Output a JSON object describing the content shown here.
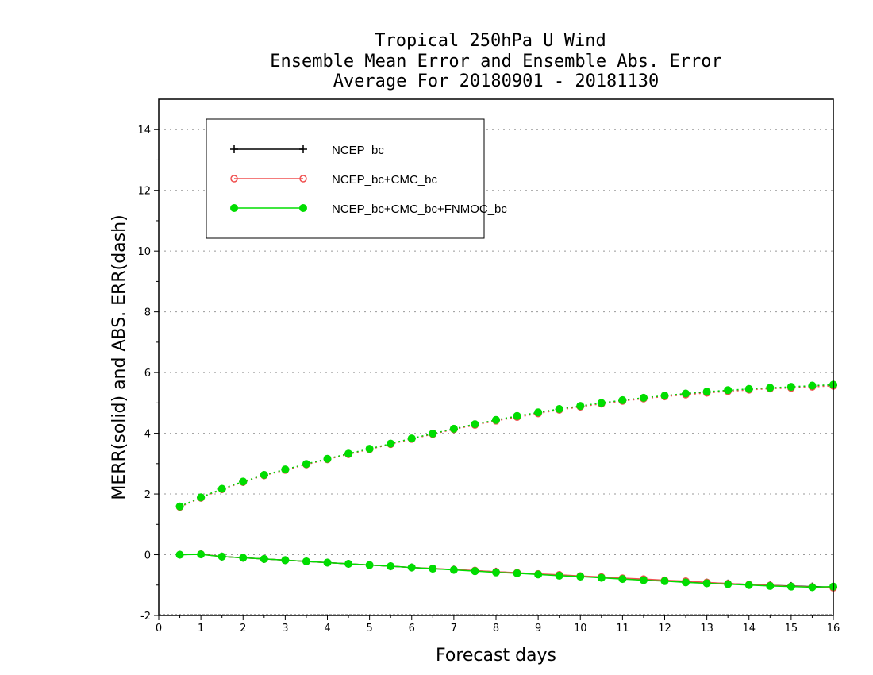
{
  "chart_data": {
    "type": "line",
    "title": [
      "Tropical 250hPa U Wind",
      "Ensemble Mean Error and Ensemble Abs. Error",
      "Average For 20180901 - 20181130"
    ],
    "xlabel": "Forecast days",
    "ylabel": "MERR(solid) and ABS. ERR(dash)",
    "xlim": [
      0,
      16
    ],
    "ylim": [
      -2,
      15
    ],
    "xticks": [
      0,
      1,
      2,
      3,
      4,
      5,
      6,
      7,
      8,
      9,
      10,
      11,
      12,
      13,
      14,
      15,
      16
    ],
    "yticks": [
      -2,
      0,
      2,
      4,
      6,
      8,
      10,
      12,
      14
    ],
    "grid": "horizontal dotted",
    "legend_position": "top-left",
    "x": [
      0.5,
      1,
      1.5,
      2,
      2.5,
      3,
      3.5,
      4,
      4.5,
      5,
      5.5,
      6,
      6.5,
      7,
      7.5,
      8,
      8.5,
      9,
      9.5,
      10,
      10.5,
      11,
      11.5,
      12,
      12.5,
      13,
      13.5,
      14,
      14.5,
      15,
      15.5,
      16
    ],
    "series": [
      {
        "name": "NCEP_bc",
        "color": "#000000",
        "marker": "plus",
        "mean_error": [
          0,
          0.02,
          -0.06,
          -0.1,
          -0.14,
          -0.18,
          -0.22,
          -0.26,
          -0.3,
          -0.34,
          -0.38,
          -0.42,
          -0.46,
          -0.49,
          -0.53,
          -0.56,
          -0.6,
          -0.64,
          -0.68,
          -0.71,
          -0.75,
          -0.79,
          -0.82,
          -0.86,
          -0.89,
          -0.92,
          -0.95,
          -0.98,
          -1.01,
          -1.03,
          -1.05,
          -1.07
        ],
        "abs_error": [
          1.58,
          1.88,
          2.16,
          2.4,
          2.62,
          2.8,
          2.98,
          3.15,
          3.32,
          3.48,
          3.65,
          3.82,
          3.98,
          4.14,
          4.29,
          4.43,
          4.56,
          4.68,
          4.79,
          4.89,
          4.99,
          5.08,
          5.16,
          5.23,
          5.3,
          5.36,
          5.41,
          5.45,
          5.49,
          5.52,
          5.55,
          5.58
        ]
      },
      {
        "name": "NCEP_bc+CMC_bc",
        "color": "#f05050",
        "marker": "open-circle",
        "mean_error": [
          0,
          0.02,
          -0.06,
          -0.1,
          -0.14,
          -0.18,
          -0.22,
          -0.26,
          -0.3,
          -0.34,
          -0.38,
          -0.42,
          -0.45,
          -0.49,
          -0.52,
          -0.56,
          -0.59,
          -0.63,
          -0.66,
          -0.7,
          -0.73,
          -0.77,
          -0.8,
          -0.84,
          -0.87,
          -0.91,
          -0.95,
          -0.98,
          -1.01,
          -1.04,
          -1.06,
          -1.09
        ],
        "abs_error": [
          1.57,
          1.87,
          2.15,
          2.39,
          2.61,
          2.79,
          2.97,
          3.14,
          3.31,
          3.47,
          3.64,
          3.81,
          3.97,
          4.13,
          4.27,
          4.41,
          4.53,
          4.65,
          4.77,
          4.87,
          4.97,
          5.06,
          5.14,
          5.21,
          5.27,
          5.33,
          5.38,
          5.43,
          5.47,
          5.49,
          5.53,
          5.56
        ]
      },
      {
        "name": "NCEP_bc+CMC_bc+FNMOC_bc",
        "color": "#00dd00",
        "marker": "filled-circle",
        "mean_error": [
          0,
          0.01,
          -0.06,
          -0.1,
          -0.14,
          -0.18,
          -0.22,
          -0.26,
          -0.3,
          -0.34,
          -0.38,
          -0.42,
          -0.46,
          -0.5,
          -0.54,
          -0.58,
          -0.61,
          -0.65,
          -0.69,
          -0.72,
          -0.76,
          -0.8,
          -0.84,
          -0.87,
          -0.91,
          -0.94,
          -0.97,
          -1,
          -1.03,
          -1.05,
          -1.07,
          -1.05
        ],
        "abs_error": [
          1.59,
          1.89,
          2.17,
          2.41,
          2.63,
          2.81,
          2.99,
          3.16,
          3.33,
          3.49,
          3.66,
          3.83,
          3.99,
          4.15,
          4.3,
          4.44,
          4.57,
          4.69,
          4.8,
          4.9,
          5,
          5.09,
          5.17,
          5.24,
          5.31,
          5.37,
          5.42,
          5.46,
          5.5,
          5.53,
          5.57,
          5.6
        ]
      }
    ]
  }
}
